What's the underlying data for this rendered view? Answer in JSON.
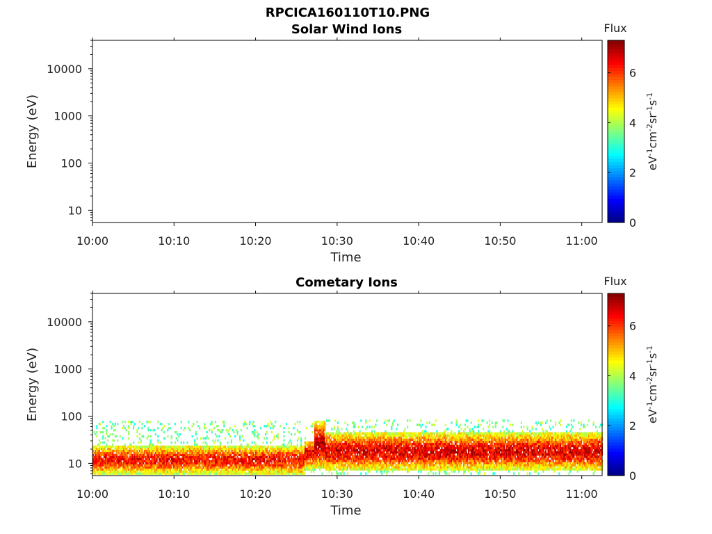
{
  "figure": {
    "title": "RPCICA160110T10.PNG"
  },
  "chart_data": [
    {
      "type": "heatmap",
      "title": "Solar Wind Ions",
      "xlabel": "Time",
      "ylabel": "Energy (eV)",
      "xticks": [
        "10:00",
        "10:10",
        "10:20",
        "10:30",
        "10:40",
        "10:50",
        "11:00"
      ],
      "xlim_minutes": [
        0,
        62.5
      ],
      "yscale": "log",
      "ylim": [
        5.5,
        40000
      ],
      "yticks": [
        {
          "value": 10,
          "label": "10"
        },
        {
          "value": 100,
          "label": "100"
        },
        {
          "value": 1000,
          "label": "1000"
        },
        {
          "value": 10000,
          "label": "10000"
        }
      ],
      "colorbar": {
        "title": "Flux",
        "label": "eV-1cm-2sr-1s-1",
        "label_parts": [
          {
            "t": "eV"
          },
          {
            "t": "-1",
            "sup": true
          },
          {
            "t": "cm"
          },
          {
            "t": "-2",
            "sup": true
          },
          {
            "t": "sr"
          },
          {
            "t": "-1",
            "sup": true
          },
          {
            "t": "s"
          },
          {
            "t": "-1",
            "sup": true
          }
        ],
        "range": [
          0,
          7.3
        ],
        "ticks": [
          "0",
          "2",
          "4",
          "6"
        ],
        "tick_values": [
          0,
          2,
          4,
          6
        ]
      },
      "segments": []
    },
    {
      "type": "heatmap",
      "title": "Cometary Ions",
      "xlabel": "Time",
      "ylabel": "Energy (eV)",
      "xticks": [
        "10:00",
        "10:10",
        "10:20",
        "10:30",
        "10:40",
        "10:50",
        "11:00"
      ],
      "xlim_minutes": [
        0,
        62.5
      ],
      "yscale": "log",
      "ylim": [
        5.5,
        40000
      ],
      "yticks": [
        {
          "value": 10,
          "label": "10"
        },
        {
          "value": 100,
          "label": "100"
        },
        {
          "value": 1000,
          "label": "1000"
        },
        {
          "value": 10000,
          "label": "10000"
        }
      ],
      "colorbar": {
        "title": "Flux",
        "label": "eV-1cm-2sr-1s-1",
        "label_parts": [
          {
            "t": "eV"
          },
          {
            "t": "-1",
            "sup": true
          },
          {
            "t": "cm"
          },
          {
            "t": "-2",
            "sup": true
          },
          {
            "t": "sr"
          },
          {
            "t": "-1",
            "sup": true
          },
          {
            "t": "s"
          },
          {
            "t": "-1",
            "sup": true
          }
        ],
        "range": [
          0,
          7.3
        ],
        "ticks": [
          "0",
          "2",
          "4",
          "6"
        ],
        "tick_values": [
          0,
          2,
          4,
          6
        ]
      },
      "segments": [
        {
          "t_start": 0,
          "t_end": 26,
          "e_low_eV": 6,
          "e_high_eV": 25,
          "e_peak_eV": 12,
          "peak_flux": 6.3,
          "sparse_top_eV": 80
        },
        {
          "t_start": 26,
          "t_end": 27.2,
          "e_low_eV": 7,
          "e_high_eV": 30,
          "e_peak_eV": 16,
          "peak_flux": 6.5,
          "sparse_top_eV": 80
        },
        {
          "t_start": 27.2,
          "t_end": 28.5,
          "e_low_eV": 8,
          "e_high_eV": 80,
          "e_peak_eV": 25,
          "peak_flux": 7.0,
          "sparse_top_eV": 80
        },
        {
          "t_start": 28.5,
          "t_end": 62.5,
          "e_low_eV": 7,
          "e_high_eV": 45,
          "e_peak_eV": 18,
          "peak_flux": 6.6,
          "sparse_top_eV": 85
        }
      ]
    }
  ]
}
